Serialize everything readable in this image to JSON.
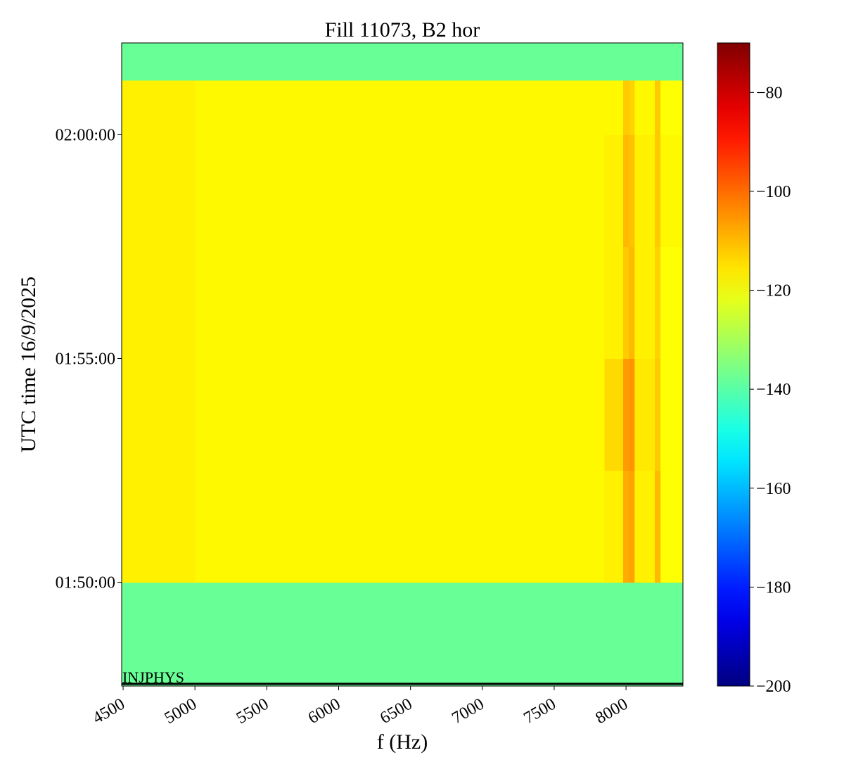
{
  "chart_data": {
    "type": "heatmap",
    "title": "Fill 11073, B2 hor",
    "x_label": "f (Hz)",
    "y_label": "UTC time 16/9/2025",
    "colormap": "jet",
    "x_edges": [
      4490,
      5000,
      5500,
      6000,
      6500,
      7000,
      7500,
      7850,
      7980,
      8020,
      8060,
      8200,
      8240,
      8396
    ],
    "y_edges": [
      6461,
      6600,
      6750,
      6900,
      7050,
      7200,
      7273,
      7323
    ],
    "z": [
      [
        -138,
        -138,
        -138,
        -138,
        -138,
        -138,
        -138,
        -138,
        -138,
        -138,
        -138,
        -138,
        -138
      ],
      [
        -117,
        -118,
        -118,
        -118,
        -118,
        -118,
        -118,
        -117,
        -108,
        -107,
        -117,
        -110,
        -119
      ],
      [
        -117,
        -118,
        -118,
        -118,
        -118,
        -118,
        -118,
        -114,
        -106,
        -105,
        -116,
        -112,
        -119
      ],
      [
        -117,
        -118,
        -118,
        -118,
        -118,
        -118,
        -118,
        -117,
        -112,
        -110,
        -117,
        -113,
        -119
      ],
      [
        -117,
        -118,
        -118,
        -118,
        -118,
        -118,
        -118,
        -117,
        -110,
        -111,
        -117,
        -112,
        -118
      ],
      [
        -117,
        -118,
        -118,
        -118,
        -118,
        -118,
        -118,
        -118,
        -112,
        -113,
        -118,
        -112,
        -119
      ],
      [
        -138,
        -138,
        -138,
        -138,
        -138,
        -138,
        -138,
        -138,
        -138,
        -138,
        -138,
        -138,
        -138
      ]
    ],
    "xlim": [
      4490,
      8396
    ],
    "ylim": [
      6461,
      7323
    ],
    "zlim": [
      -200,
      -70
    ],
    "xticks": [
      4500,
      5000,
      5500,
      6000,
      6500,
      7000,
      7500,
      8000
    ],
    "yticks": [
      {
        "value": 6600,
        "label": "01:50:00"
      },
      {
        "value": 6900,
        "label": "01:55:00"
      },
      {
        "value": 7200,
        "label": "02:00:00"
      }
    ],
    "zticks": [
      {
        "value": -200,
        "label": "−200"
      },
      {
        "value": -180,
        "label": "−180"
      },
      {
        "value": -160,
        "label": "−160"
      },
      {
        "value": -140,
        "label": "−140"
      },
      {
        "value": -120,
        "label": "−120"
      },
      {
        "value": -100,
        "label": "−100"
      },
      {
        "value": -80,
        "label": "−80"
      }
    ],
    "annotations": [
      {
        "text": "INJPHYS",
        "y": 6464
      }
    ]
  }
}
